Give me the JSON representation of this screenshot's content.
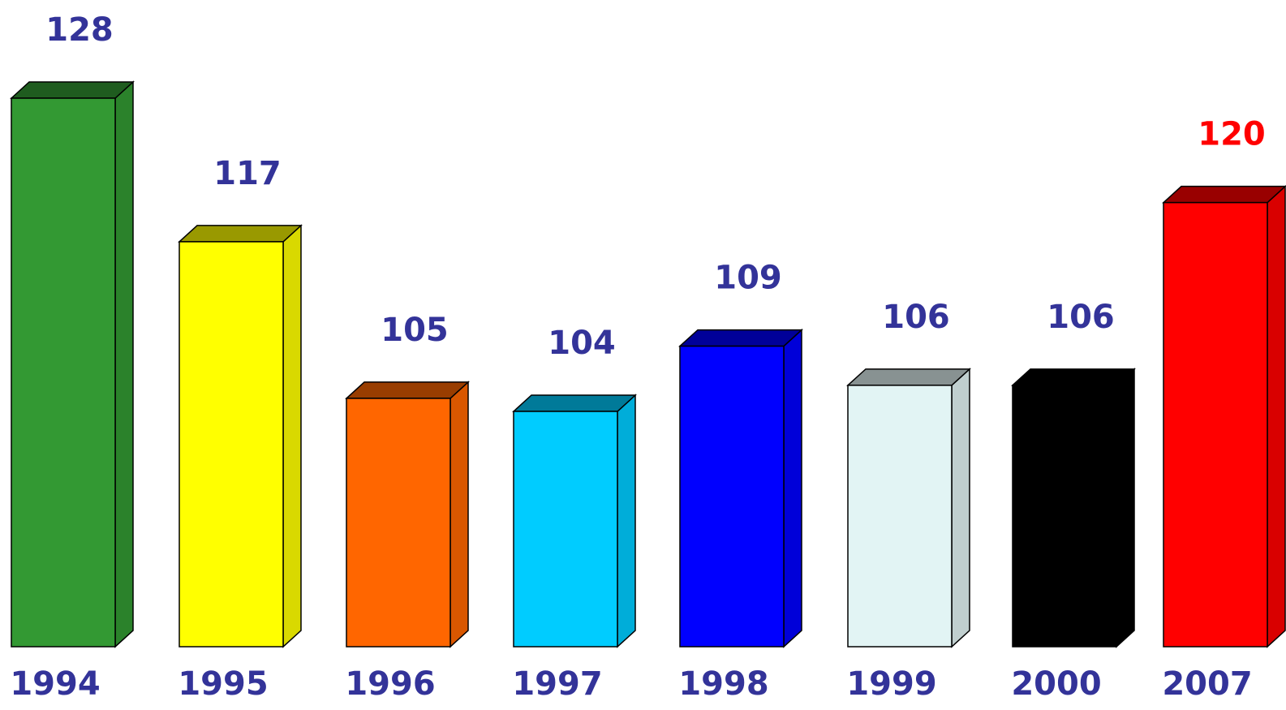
{
  "chart_data": {
    "type": "bar3d",
    "categories": [
      "1994",
      "1995",
      "1996",
      "1997",
      "1998",
      "1999",
      "2000",
      "2007"
    ],
    "values": [
      128,
      117,
      105,
      104,
      109,
      106,
      106,
      120
    ],
    "colors": [
      "#339933",
      "#ffff00",
      "#ff6600",
      "#00ccff",
      "#0000ff",
      "#e2f4f4",
      "#000000",
      "#ff0000"
    ],
    "label_colors": [
      "#333399",
      "#333399",
      "#333399",
      "#333399",
      "#333399",
      "#333399",
      "#333399",
      "#ff0000"
    ],
    "category_label_color": "#333399"
  }
}
